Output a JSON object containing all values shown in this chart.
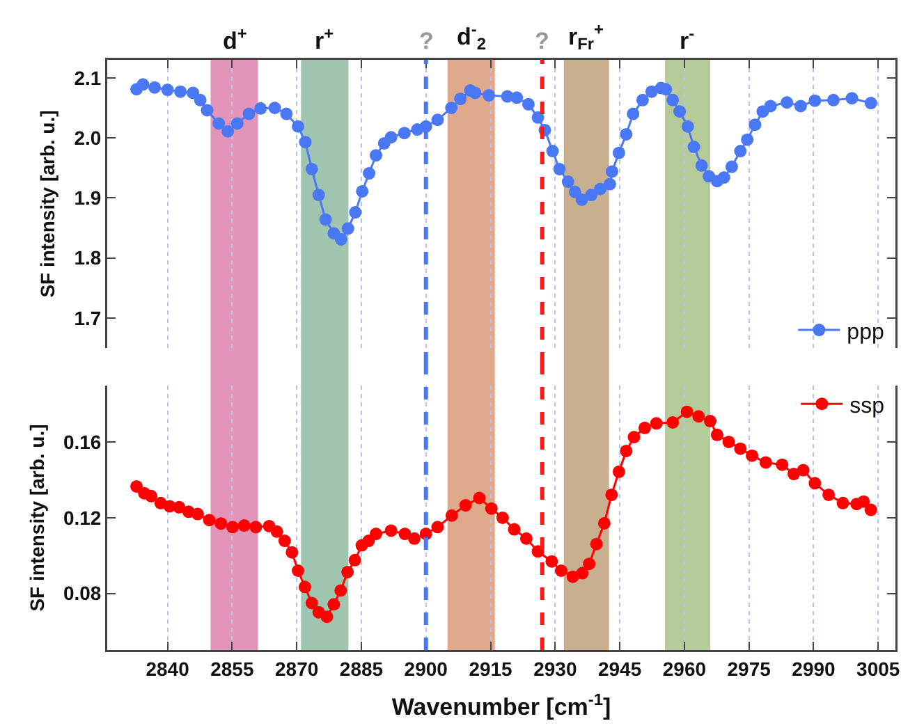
{
  "chart_data": [
    {
      "type": "line",
      "ylabel": "SF intensity [arb. u.]",
      "tick_labels": "y",
      "xlim": [
        2826,
        3009
      ],
      "xticks": [
        {
          "value": 2840,
          "label": null
        },
        {
          "value": 2855,
          "label": null
        },
        {
          "value": 2870,
          "label": null
        },
        {
          "value": 2885,
          "label": null
        },
        {
          "value": 2900,
          "label": null
        },
        {
          "value": 2915,
          "label": null
        },
        {
          "value": 2930,
          "label": null
        },
        {
          "value": 2945,
          "label": null
        },
        {
          "value": 2960,
          "label": null
        },
        {
          "value": 2975,
          "label": null
        },
        {
          "value": 2990,
          "label": null
        },
        {
          "value": 3005,
          "label": null
        }
      ],
      "ylim": [
        1.65,
        2.13
      ],
      "yticks": [
        1.7,
        1.8,
        1.9,
        {
          "value": 2,
          "label": "2.0"
        },
        2.1
      ],
      "grid": "x",
      "legend": "bottom right",
      "marker": "circle",
      "line_style": "solid",
      "series": [
        {
          "name": "ppp",
          "color": "#4a78f5",
          "x": [
            2832.8,
            2834.3,
            2837,
            2840,
            2843,
            2845.9,
            2847.6,
            2849.2,
            2851.9,
            2854,
            2856.2,
            2858.9,
            2861.6,
            2864.9,
            2867.6,
            2870.3,
            2872,
            2873.5,
            2875.1,
            2876.7,
            2878.6,
            2880.3,
            2881.9,
            2883.6,
            2885.2,
            2886.8,
            2888.4,
            2890.3,
            2891.9,
            2895,
            2898,
            2900,
            2902.7,
            2905.9,
            2908,
            2910.3,
            2911.4,
            2914.6,
            2918.9,
            2921.1,
            2923.8,
            2926,
            2927.6,
            2929.4,
            2931,
            2933,
            2934.6,
            2936.2,
            2938.4,
            2940.5,
            2942.7,
            2943.2,
            2944.8,
            2946.5,
            2948.1,
            2950.3,
            2952.4,
            2954.6,
            2955.7,
            2957.3,
            2958.9,
            2960.8,
            2962.2,
            2964,
            2965.7,
            2967.6,
            2969.2,
            2971,
            2973,
            2974.6,
            2976.4,
            2978.2,
            2980,
            2983.8,
            2987,
            2990.3,
            2994.6,
            2998.9,
            3003.3
          ],
          "values": [
            2.081,
            2.089,
            2.084,
            2.08,
            2.077,
            2.075,
            2.063,
            2.046,
            2.024,
            2.011,
            2.024,
            2.04,
            2.049,
            2.05,
            2.04,
            2.019,
            1.993,
            1.948,
            1.905,
            1.864,
            1.841,
            1.831,
            1.849,
            1.876,
            1.911,
            1.941,
            1.971,
            1.991,
            2.001,
            2.008,
            2.014,
            2.019,
            2.03,
            2.05,
            2.065,
            2.079,
            2.075,
            2.071,
            2.069,
            2.067,
            2.056,
            2.034,
            2.013,
            1.978,
            1.948,
            1.927,
            1.91,
            1.897,
            1.905,
            1.915,
            1.923,
            1.944,
            1.975,
            2.006,
            2.04,
            2.063,
            2.077,
            2.083,
            2.081,
            2.063,
            2.044,
            2.019,
            1.985,
            1.954,
            1.936,
            1.928,
            1.934,
            1.952,
            1.978,
            1.997,
            2.022,
            2.044,
            2.053,
            2.059,
            2.053,
            2.062,
            2.063,
            2.066,
            2.058
          ]
        }
      ],
      "bands": [
        {
          "axis": "x",
          "from": 2850,
          "to": 2861,
          "label": "d$^{+}$",
          "color": "#e395b9"
        },
        {
          "axis": "x",
          "from": 2871,
          "to": 2882,
          "label": "r$^{+}$",
          "color": "#9fc5b1"
        },
        {
          "axis": "x",
          "from": 2905,
          "to": 2916,
          "label": "d$^{-}$$_{2}$",
          "color": "#dfa98c"
        },
        {
          "axis": "x",
          "from": 2932,
          "to": 2942.5,
          "label": "r$_{Fr}$$^{+}$",
          "color": "#c8af8f"
        },
        {
          "axis": "x",
          "from": 2955.5,
          "to": 2966,
          "label": "r$^{-}$",
          "color": "#b5cb9a"
        }
      ],
      "ref_lines": [
        {
          "axis": "x",
          "value": 2900,
          "label": "?",
          "color": "#4a78f5",
          "line_style": "dashed"
        },
        {
          "axis": "x",
          "value": 2927,
          "label": "?",
          "color": "#ff1a1a",
          "line_style": "dashed"
        }
      ]
    },
    {
      "type": "line",
      "xlabel": "Wavenumber [cm$^{-1}$]",
      "ylabel": "SF intensity [arb. u.]",
      "xlim": [
        2826,
        3009
      ],
      "xticks": [
        2840,
        2855,
        2870,
        2885,
        2900,
        2915,
        2930,
        2945,
        2960,
        2975,
        2990,
        3005
      ],
      "ylim": [
        0.05,
        0.19
      ],
      "yticks": [
        0.08,
        0.12,
        0.16
      ],
      "grid": "x",
      "legend": "top right",
      "marker": "circle",
      "line_style": "solid",
      "series": [
        {
          "name": "ssp",
          "color": "#ff0000",
          "x": [
            2832.8,
            2834.6,
            2836.2,
            2838.4,
            2840.5,
            2842.7,
            2844.9,
            2847,
            2849.7,
            2852.4,
            2855.1,
            2857.8,
            2860.5,
            2863.6,
            2865.4,
            2867.2,
            2868.9,
            2870.3,
            2871.9,
            2873.5,
            2875.1,
            2877,
            2878.6,
            2880.2,
            2881.8,
            2883.5,
            2885.1,
            2886.7,
            2888.4,
            2891.9,
            2895.1,
            2897.3,
            2900,
            2902.7,
            2906,
            2909.2,
            2912.4,
            2915.2,
            2917.8,
            2920.5,
            2923.3,
            2926,
            2929.2,
            2931.4,
            2934.1,
            2936.3,
            2937.9,
            2939.6,
            2941.4,
            2943.1,
            2944.8,
            2946.5,
            2948.3,
            2950.8,
            2953.5,
            2957.3,
            2960.6,
            2963.3,
            2966,
            2967.6,
            2970.3,
            2973,
            2975.7,
            2978.9,
            2982.7,
            2985.4,
            2987.6,
            2990.3,
            2993.5,
            2996.8,
            3000,
            3001.6,
            3003.3
          ],
          "values": [
            0.1366,
            0.133,
            0.1315,
            0.1278,
            0.1261,
            0.1256,
            0.1232,
            0.122,
            0.1188,
            0.117,
            0.1151,
            0.1159,
            0.1151,
            0.1156,
            0.1127,
            0.1078,
            0.1017,
            0.092,
            0.0834,
            0.0749,
            0.07,
            0.0676,
            0.0742,
            0.0815,
            0.0913,
            0.0976,
            0.1054,
            0.1078,
            0.1115,
            0.1132,
            0.1115,
            0.109,
            0.1115,
            0.1151,
            0.1212,
            0.1266,
            0.1305,
            0.1249,
            0.12,
            0.1139,
            0.109,
            0.1022,
            0.0969,
            0.092,
            0.0888,
            0.0907,
            0.0956,
            0.1061,
            0.1171,
            0.1322,
            0.1444,
            0.1554,
            0.1627,
            0.1676,
            0.17,
            0.1705,
            0.1761,
            0.1737,
            0.1712,
            0.1639,
            0.1602,
            0.1566,
            0.1529,
            0.1493,
            0.1481,
            0.1432,
            0.1452,
            0.1383,
            0.1322,
            0.1278,
            0.1273,
            0.1286,
            0.1242
          ]
        }
      ],
      "bands": [
        {
          "axis": "x",
          "from": 2850,
          "to": 2861,
          "color": "#e395b9"
        },
        {
          "axis": "x",
          "from": 2871,
          "to": 2882,
          "color": "#9fc5b1"
        },
        {
          "axis": "x",
          "from": 2905,
          "to": 2916,
          "color": "#dfa98c"
        },
        {
          "axis": "x",
          "from": 2932,
          "to": 2942.5,
          "color": "#c8af8f"
        },
        {
          "axis": "x",
          "from": 2955.5,
          "to": 2966,
          "color": "#b5cb9a"
        }
      ],
      "ref_lines": [
        {
          "axis": "x",
          "value": 2900,
          "color": "#4a78f5",
          "line_style": "dashed"
        },
        {
          "axis": "x",
          "value": 2927,
          "color": "#ff1a1a",
          "line_style": "dashed"
        }
      ]
    }
  ]
}
